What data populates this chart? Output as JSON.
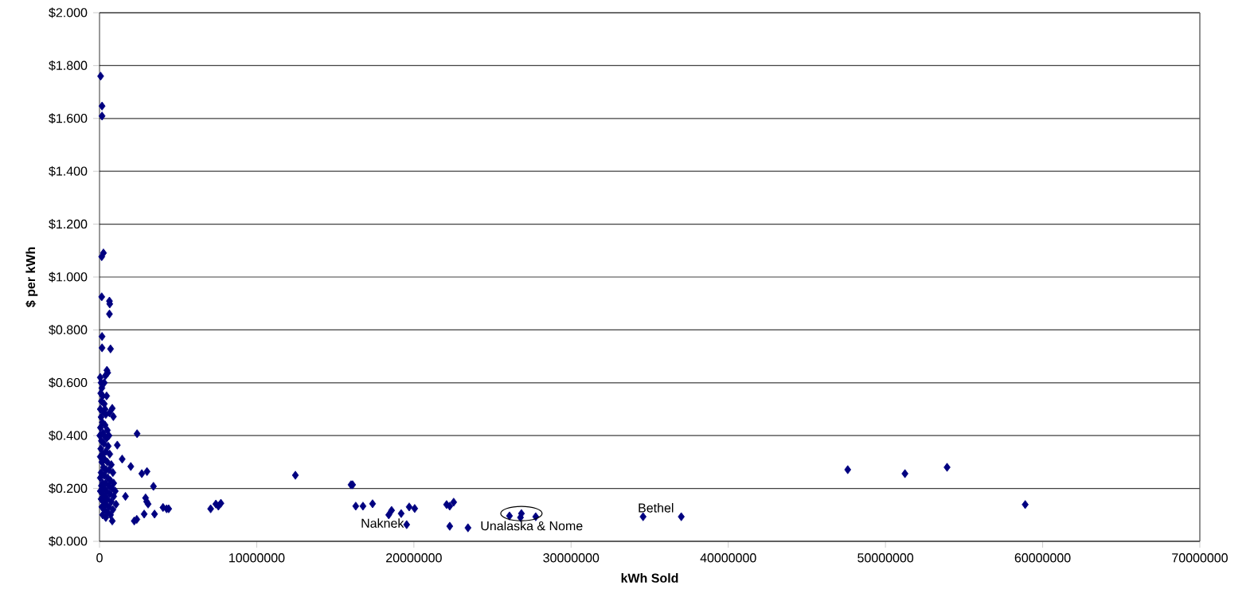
{
  "chart_data": {
    "type": "scatter",
    "xlabel": "kWh Sold",
    "ylabel": "$ per kWh",
    "xlim": [
      0,
      70000000
    ],
    "xticks": [
      0,
      10000000,
      20000000,
      30000000,
      40000000,
      50000000,
      60000000,
      70000000
    ],
    "ylim": [
      0,
      2.0
    ],
    "yticks": [
      {
        "value": 0,
        "label": "$0.000"
      },
      {
        "value": 0.2,
        "label": "$0.200"
      },
      {
        "value": 0.4,
        "label": "$0.400"
      },
      {
        "value": 0.6,
        "label": "$0.600"
      },
      {
        "value": 0.8,
        "label": "$0.800"
      },
      {
        "value": 1.0,
        "label": "$1.000"
      },
      {
        "value": 1.2,
        "label": "$1.200"
      },
      {
        "value": 1.4,
        "label": "$1.400"
      },
      {
        "value": 1.6,
        "label": "$1.600"
      },
      {
        "value": 1.8,
        "label": "$1.800"
      },
      {
        "value": 2.0,
        "label": "$2.000"
      }
    ],
    "grid": "y",
    "marker": "diamond",
    "annotations": [
      {
        "text": "Naknek",
        "x": 19540000,
        "y": 0.063
      },
      {
        "text": "Unalaska & Nome",
        "x": 26080000,
        "y": 0.096
      },
      {
        "text": "Bethel",
        "x": 34580000,
        "y": 0.093
      }
    ],
    "series": [
      {
        "color": "#000080",
        "x": [
          70000,
          160000,
          160000,
          250000,
          140000,
          140000,
          630000,
          650000,
          630000,
          160000,
          160000,
          700000,
          470000,
          520000,
          380000,
          810000,
          880000,
          630000,
          2390000,
          1130000,
          1440000,
          1990000,
          2690000,
          3020000,
          3430000,
          1650000,
          2930000,
          3000000,
          3090000,
          4040000,
          4270000,
          4400000,
          2840000,
          3500000,
          2210000,
          2370000,
          810000,
          7070000,
          7400000,
          7560000,
          7720000,
          50000,
          100000,
          150000,
          80000,
          200000,
          120000,
          300000,
          50000,
          250000,
          400000,
          100000,
          180000,
          350000,
          60000,
          500000,
          220000,
          20000,
          300000,
          450000,
          600000,
          120000,
          280000,
          550000,
          80000,
          400000,
          200000,
          650000,
          50000,
          320000,
          500000,
          150000,
          750000,
          250000,
          420000,
          600000,
          100000,
          850000,
          300000,
          520000,
          50000,
          700000,
          200000,
          380000,
          900000,
          120000,
          600000,
          280000,
          800000,
          450000,
          50000,
          1000000,
          180000,
          650000,
          350000,
          900000,
          100000,
          500000,
          750000,
          250000,
          400000,
          1050000,
          150000,
          600000,
          850000,
          300000,
          500000,
          200000,
          700000,
          400000,
          300000,
          450000,
          350000,
          12460000,
          16000000,
          16100000,
          16300000,
          16760000,
          17370000,
          18400000,
          18580000,
          19190000,
          19540000,
          19700000,
          20050000,
          22080000,
          22280000,
          22530000,
          22280000,
          23440000,
          26080000,
          26840000,
          26780000,
          27750000,
          34580000,
          37010000,
          47600000,
          51240000,
          53920000,
          58890000
        ],
        "values": [
          1.76,
          1.647,
          1.609,
          1.091,
          1.077,
          0.925,
          0.909,
          0.898,
          0.86,
          0.775,
          0.732,
          0.728,
          0.647,
          0.638,
          0.627,
          0.503,
          0.472,
          0.486,
          0.407,
          0.364,
          0.311,
          0.283,
          0.256,
          0.264,
          0.208,
          0.17,
          0.164,
          0.15,
          0.141,
          0.128,
          0.123,
          0.123,
          0.103,
          0.103,
          0.077,
          0.083,
          0.077,
          0.123,
          0.141,
          0.133,
          0.144,
          0.62,
          0.6,
          0.58,
          0.56,
          0.55,
          0.53,
          0.52,
          0.5,
          0.49,
          0.48,
          0.47,
          0.45,
          0.44,
          0.43,
          0.42,
          0.41,
          0.4,
          0.4,
          0.39,
          0.4,
          0.38,
          0.37,
          0.36,
          0.35,
          0.34,
          0.33,
          0.33,
          0.32,
          0.31,
          0.3,
          0.3,
          0.29,
          0.28,
          0.27,
          0.27,
          0.26,
          0.26,
          0.25,
          0.24,
          0.24,
          0.23,
          0.22,
          0.22,
          0.22,
          0.21,
          0.21,
          0.2,
          0.2,
          0.19,
          0.19,
          0.19,
          0.18,
          0.18,
          0.17,
          0.17,
          0.16,
          0.16,
          0.15,
          0.15,
          0.14,
          0.14,
          0.13,
          0.13,
          0.12,
          0.12,
          0.11,
          0.1,
          0.1,
          0.09,
          0.6,
          0.55,
          0.5,
          0.25,
          0.214,
          0.214,
          0.133,
          0.133,
          0.142,
          0.1,
          0.117,
          0.105,
          0.063,
          0.13,
          0.124,
          0.139,
          0.133,
          0.148,
          0.057,
          0.051,
          0.096,
          0.105,
          0.09,
          0.093,
          0.093,
          0.093,
          0.271,
          0.256,
          0.28,
          0.139
        ]
      }
    ]
  }
}
